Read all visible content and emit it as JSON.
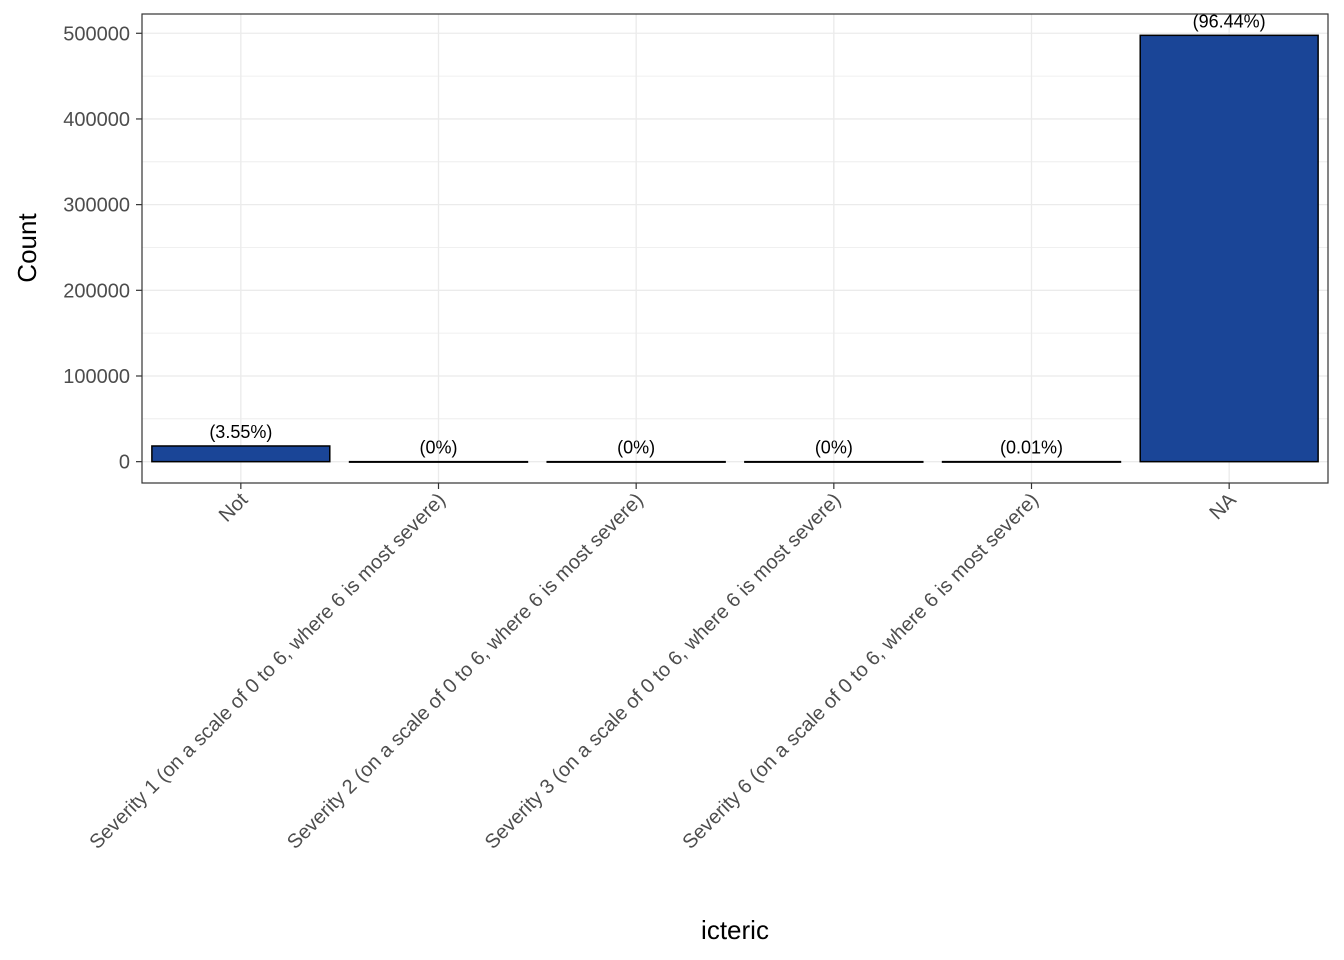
{
  "chart_data": {
    "type": "bar",
    "title": "",
    "xlabel": "icteric",
    "ylabel": "Count",
    "categories": [
      "Not",
      "Severity 1 (on a scale of 0 to 6, where 6 is most severe)",
      "Severity 2 (on a scale of 0 to 6, where 6 is most severe)",
      "Severity 3 (on a scale of 0 to 6, where 6 is most severe)",
      "Severity 6 (on a scale of 0 to 6, where 6 is most severe)",
      "NA"
    ],
    "values": [
      18300,
      10,
      10,
      10,
      50,
      497600
    ],
    "data_labels": [
      "(3.55%)",
      "(0%)",
      "(0%)",
      "(0%)",
      "(0.01%)",
      "(96.44%)"
    ],
    "ylim": [
      -24900,
      522500
    ],
    "yticks": [
      0,
      100000,
      200000,
      300000,
      400000,
      500000
    ],
    "ytick_labels": [
      "0",
      "100000",
      "200000",
      "300000",
      "400000",
      "500000"
    ],
    "grid": true,
    "colors": {
      "bar_fill": "#1a4597",
      "bar_stroke": "#000000",
      "grid": "#ebebeb",
      "panel_border": "#333333",
      "tick_text": "#4d4d4d"
    }
  }
}
